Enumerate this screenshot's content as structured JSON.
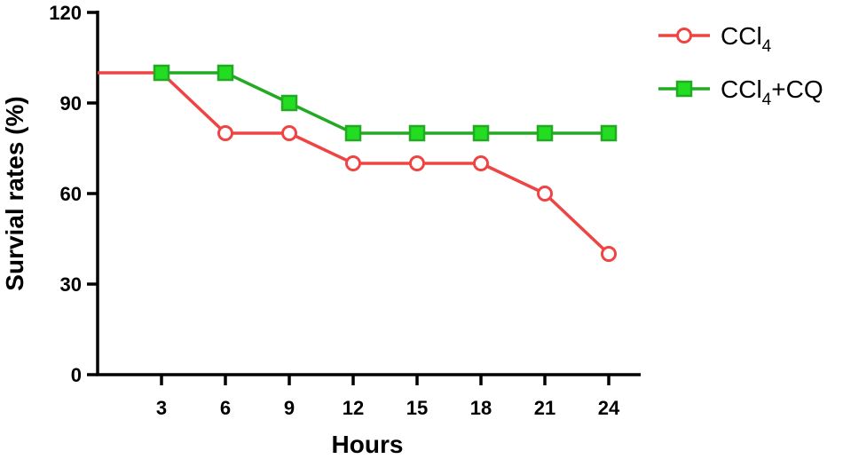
{
  "chart_data": {
    "type": "line",
    "xlabel": "Hours",
    "ylabel": "Survial rates (%)",
    "ylim": [
      0,
      120
    ],
    "yticks": [
      0,
      30,
      60,
      90,
      120
    ],
    "xticks": [
      3,
      6,
      9,
      12,
      15,
      18,
      21,
      24
    ],
    "legend_position": "top-right",
    "grid": false,
    "series": [
      {
        "name": "CCl4",
        "legend_base": "CCl",
        "legend_sub": "4",
        "legend_suffix": "",
        "marker": "open-circle",
        "color": "#ef4444",
        "fill": "#ffffff",
        "x": [
          3,
          6,
          9,
          12,
          15,
          18,
          21,
          24
        ],
        "y": [
          100,
          80,
          80,
          70,
          70,
          70,
          60,
          40
        ]
      },
      {
        "name": "CCl4+CQ",
        "legend_base": "CCl",
        "legend_sub": "4",
        "legend_suffix": "+CQ",
        "marker": "filled-square",
        "color": "#22aa22",
        "fill": "#22dd22",
        "x": [
          3,
          6,
          9,
          12,
          15,
          18,
          21,
          24
        ],
        "y": [
          100,
          100,
          90,
          80,
          80,
          80,
          80,
          80
        ]
      }
    ]
  }
}
